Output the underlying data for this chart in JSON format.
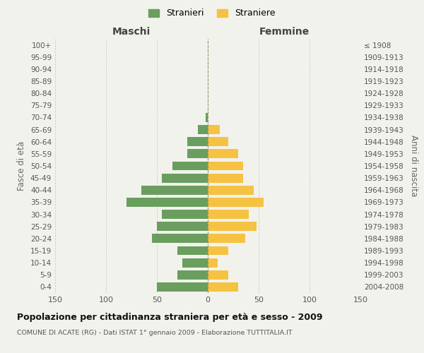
{
  "age_groups": [
    "0-4",
    "5-9",
    "10-14",
    "15-19",
    "20-24",
    "25-29",
    "30-34",
    "35-39",
    "40-44",
    "45-49",
    "50-54",
    "55-59",
    "60-64",
    "65-69",
    "70-74",
    "75-79",
    "80-84",
    "85-89",
    "90-94",
    "95-99",
    "100+"
  ],
  "birth_years": [
    "2004-2008",
    "1999-2003",
    "1994-1998",
    "1989-1993",
    "1984-1988",
    "1979-1983",
    "1974-1978",
    "1969-1973",
    "1964-1968",
    "1959-1963",
    "1954-1958",
    "1949-1953",
    "1944-1948",
    "1939-1943",
    "1934-1938",
    "1929-1933",
    "1924-1928",
    "1919-1923",
    "1914-1918",
    "1909-1913",
    "≤ 1908"
  ],
  "maschi": [
    50,
    30,
    25,
    30,
    55,
    50,
    45,
    80,
    65,
    45,
    35,
    20,
    20,
    10,
    2,
    0,
    0,
    0,
    0,
    0,
    0
  ],
  "femmine": [
    30,
    20,
    10,
    20,
    37,
    48,
    40,
    55,
    45,
    35,
    35,
    30,
    20,
    12,
    0,
    0,
    0,
    0,
    0,
    0,
    0
  ],
  "male_color": "#6a9e5e",
  "female_color": "#f5c242",
  "background_color": "#f2f2ed",
  "grid_color": "#cccccc",
  "title": "Popolazione per cittadinanza straniera per età e sesso - 2009",
  "subtitle": "COMUNE DI ACATE (RG) - Dati ISTAT 1° gennaio 2009 - Elaborazione TUTTITALIA.IT",
  "xlabel_left": "Maschi",
  "xlabel_right": "Femmine",
  "ylabel_left": "Fasce di età",
  "ylabel_right": "Anni di nascita",
  "legend_male": "Stranieri",
  "legend_female": "Straniere",
  "xlim": 150,
  "bar_height": 0.75
}
